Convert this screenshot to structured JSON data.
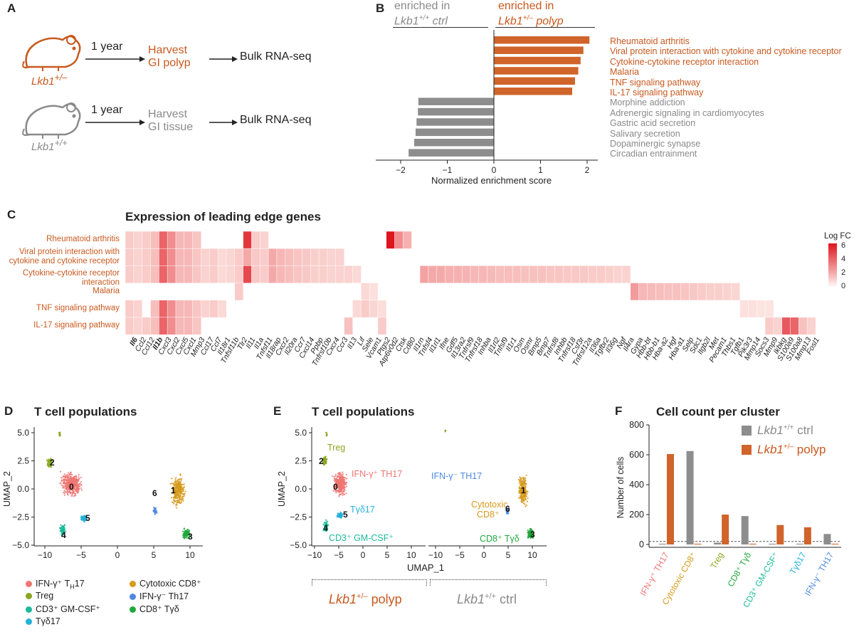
{
  "panelA": {
    "letter": "A",
    "rows": [
      {
        "genotype": "Lkb1+/–",
        "time": "1 year",
        "harvest1": "Harvest",
        "harvest2": "GI polyp",
        "assay": "Bulk RNA-seq",
        "color": "#c8591f"
      },
      {
        "genotype": "Lkb1+/+",
        "time": "1 year",
        "harvest1": "Harvest",
        "harvest2": "GI tissue",
        "assay": "Bulk RNA-seq",
        "color": "#8a8a8a"
      }
    ]
  },
  "panelB": {
    "letter": "B",
    "left_header_1": "enriched in",
    "left_header_2": "Lkb1+/+ ctrl",
    "right_header_1": "enriched in",
    "right_header_2": "Lkb1+/– polyp",
    "chart_data": {
      "type": "bar",
      "orientation": "horizontal",
      "xlabel": "Normalized enrichment score",
      "xlim": [
        -2.3,
        2.5
      ],
      "xticks": [
        "−2",
        "−1",
        "0",
        "1",
        "2"
      ],
      "categories": [
        "Rheumatoid arthritis",
        "Viral protein interaction with cytokine and cytokine receptor",
        "Cytokine-cytokine receptor interaction",
        "Malaria",
        "TNF signaling pathway",
        "IL-17 signaling pathway",
        "Morphine addiction",
        "Adrenergic signaling in cardiomyocytes",
        "Gastric acid secretion",
        "Salivary secretion",
        "Dopaminergic synapse",
        "Circadian entrainment"
      ],
      "values": [
        2.05,
        1.92,
        1.86,
        1.81,
        1.74,
        1.68,
        -1.62,
        -1.63,
        -1.66,
        -1.68,
        -1.71,
        -1.83
      ],
      "colors": {
        "positive": "#d0642a",
        "negative": "#8d8d8d"
      }
    }
  },
  "panelC": {
    "letter": "C",
    "title": "Expression of leading edge genes",
    "legend_title": "Log FC",
    "chart_data": {
      "type": "heatmap",
      "rows": [
        "Rheumatoid arthritis",
        "Viral protein interaction with cytokine and cytokine receptor",
        "Cytokine-cytokine receptor interaction",
        "Malaria",
        "TNF signaling pathway",
        "IL-17 signaling pathway"
      ],
      "columns": [
        "Il6",
        "Ccl2",
        "Ccl12",
        "Il1b",
        "Cxcl3",
        "Cxcl2",
        "Cxcl5",
        "Cxcl1",
        "Mmp3",
        "Ccl17",
        "Ccl7",
        "Il18r1",
        "Tnfsf11b",
        "Tlr2",
        "Il11",
        "Il1a",
        "Tnfsf11",
        "Il18rap",
        "Cxcr2",
        "Il20ra",
        "Ccr7",
        "Cxcl14",
        "Ppbp",
        "Tnfrsf10b",
        "Cxcr4",
        "Ccr3",
        "Il13",
        "Lif",
        "Sele",
        "Vcam1",
        "Ptgs2",
        "Atp6v0d2",
        "Ctsk",
        "Cd80",
        "Il1rn",
        "Tnfsf4",
        "Il1rl1",
        "Ifne",
        "Gdf5",
        "Il13ra2",
        "Tnfrsf9",
        "Tnfrsf18",
        "Inhba",
        "Il1rl2",
        "Tnfsf9",
        "Il1r1",
        "Osm",
        "Osmr",
        "Bmp5",
        "Bmp7",
        "Tnfrsf8",
        "Inhbb",
        "Tnfrsf18",
        "Csf3r",
        "Tnfrsf12a",
        "Il36a",
        "Tgfbr2",
        "Il36g",
        "Ngf",
        "Il4ra",
        "Gypa",
        "Hbb-bt",
        "Hbb-b1",
        "Hba-a2",
        "Hgf",
        "Hba-a1",
        "Selp",
        "Sdc1",
        "Itgb2l",
        "Met",
        "Pecam1",
        "Thbs1",
        "Tgfb1",
        "Pik3r3",
        "Mmp14",
        "Socs3",
        "Mmp9",
        "Ikbkg",
        "S100a9",
        "S100a8",
        "Mmp13",
        "Fosl1"
      ],
      "bold_columns": [
        "Il6",
        "Il1b"
      ],
      "legend_ticks": [
        "6",
        "4",
        "2",
        "0"
      ],
      "color_range": [
        0,
        6
      ],
      "values": [
        [
          1.2,
          1.0,
          1.2,
          1.6,
          4.2,
          3.0,
          1.8,
          1.8,
          1.4,
          0,
          0,
          0,
          0,
          0,
          5.5,
          1.2,
          1.0,
          0,
          0,
          0,
          0,
          0,
          0,
          0,
          0,
          0,
          0,
          0,
          0,
          0,
          0,
          6.5,
          3.0,
          2.0,
          0,
          0,
          0,
          0,
          0,
          0,
          0,
          0,
          0,
          0,
          0,
          0,
          0,
          0,
          0,
          0,
          0,
          0,
          0,
          0,
          0,
          0,
          0,
          0,
          0,
          0,
          0,
          0,
          0,
          0,
          0,
          0,
          0,
          0,
          0,
          0,
          0,
          0,
          0,
          0,
          0,
          0,
          0,
          0,
          0,
          0,
          0,
          0
        ],
        [
          1.2,
          1.0,
          1.2,
          1.6,
          4.2,
          3.0,
          1.8,
          1.8,
          1.4,
          1.0,
          1.2,
          0.8,
          0.9,
          1.2,
          2.2,
          1.3,
          1.2,
          2.2,
          1.8,
          1.6,
          1.4,
          1.3,
          1.1,
          1.1,
          1.0,
          1.0,
          0,
          0,
          0,
          0,
          0,
          0,
          0,
          0,
          0,
          0,
          0,
          0,
          0,
          0,
          0,
          0,
          0,
          0,
          0,
          0,
          0,
          0,
          0,
          0,
          0,
          0,
          0,
          0,
          0,
          0,
          0,
          0,
          0,
          0,
          0,
          0,
          0,
          0,
          0,
          0,
          0,
          0,
          0,
          0,
          0,
          0,
          0,
          0,
          0,
          0,
          0,
          0,
          0,
          0,
          0,
          0
        ],
        [
          1.2,
          1.0,
          1.2,
          1.6,
          4.2,
          3.0,
          1.8,
          1.8,
          1.4,
          1.0,
          1.2,
          0.8,
          0.9,
          1.2,
          5.0,
          1.3,
          1.2,
          2.2,
          1.8,
          1.6,
          1.4,
          1.3,
          1.1,
          1.1,
          1.0,
          1.0,
          1.0,
          0.8,
          0,
          0,
          0,
          0,
          0,
          0,
          0,
          2.4,
          2.2,
          2.2,
          2.0,
          2.0,
          1.9,
          1.8,
          1.8,
          1.7,
          1.6,
          1.6,
          1.6,
          1.5,
          1.5,
          1.5,
          1.4,
          1.4,
          1.3,
          1.3,
          1.3,
          1.2,
          1.2,
          1.1,
          1.0,
          1.0,
          0,
          0,
          0,
          0,
          0,
          0,
          0,
          0,
          0,
          0,
          0,
          0,
          0,
          0,
          0,
          0,
          0,
          0,
          0,
          0,
          0,
          0
        ],
        [
          0,
          0,
          0,
          0,
          0,
          0,
          0,
          0,
          0,
          0,
          0,
          0,
          0,
          1.2,
          0,
          0,
          0,
          0,
          0,
          0,
          0,
          0,
          0,
          0,
          0,
          0,
          0,
          0,
          0.8,
          0.6,
          0,
          0,
          0,
          0,
          0,
          0,
          0,
          0,
          0,
          0,
          0,
          0,
          0,
          0,
          0,
          0,
          0,
          0,
          0,
          0,
          0,
          0,
          0,
          0,
          0,
          0,
          0,
          0,
          0,
          0,
          2.6,
          1.8,
          1.7,
          1.6,
          1.5,
          1.5,
          1.4,
          1.3,
          1.2,
          1.1,
          1.1,
          1.0,
          0.9,
          0,
          0,
          0,
          0,
          0,
          0,
          0,
          0,
          0
        ],
        [
          1.2,
          1.0,
          0,
          1.6,
          4.2,
          3.0,
          1.8,
          1.8,
          1.4,
          1.0,
          1.2,
          0.8,
          0,
          0,
          0,
          0,
          0,
          0,
          0,
          0,
          0,
          0,
          0,
          0,
          0,
          0,
          0,
          0.8,
          1.2,
          0.9,
          0.7,
          0,
          0,
          0,
          0,
          0,
          0,
          0,
          0,
          0,
          0,
          0,
          0,
          0,
          0,
          0,
          0,
          0,
          0,
          0,
          0,
          0,
          0,
          0,
          0,
          0,
          0,
          0,
          0,
          0,
          0,
          0,
          0,
          0,
          0,
          0,
          0,
          0,
          0,
          0,
          0,
          0,
          0,
          0.6,
          0.6,
          0.5,
          0.5,
          0,
          0,
          0,
          0,
          0
        ],
        [
          1.2,
          1.0,
          1.2,
          1.6,
          4.2,
          3.0,
          1.8,
          1.8,
          1.4,
          0,
          0,
          0,
          0,
          0,
          0,
          0,
          0,
          0,
          0,
          0,
          0,
          0,
          0,
          0,
          0,
          0,
          1.5,
          0,
          0,
          0,
          1.2,
          0,
          0,
          0,
          0,
          0,
          0,
          0,
          0,
          0,
          0,
          0,
          0,
          0,
          0,
          0,
          0,
          0,
          0,
          0,
          0,
          0,
          0,
          0,
          0,
          0,
          0,
          0,
          0,
          0,
          0,
          0,
          0,
          0,
          0,
          0,
          0,
          0,
          0,
          0,
          0,
          0,
          0,
          0,
          0,
          0,
          1.2,
          1.0,
          4.5,
          4.2,
          1.5,
          1.0
        ]
      ]
    }
  },
  "panelD": {
    "letter": "D",
    "title": "T cell populations",
    "xlabel": "UMAP_1",
    "ylabel": "UMAP_2",
    "xticks": [
      "−10",
      "−5",
      "0",
      "5",
      "10"
    ],
    "yticks": [
      "5.0",
      "2.5",
      "0.0",
      "−2.5",
      "−5.0"
    ],
    "cluster_ids": [
      "0",
      "1",
      "2",
      "3",
      "4",
      "5",
      "6"
    ],
    "legend": [
      {
        "label": "IFN-γ⁺ T",
        "sub": "H",
        "suffix": "17",
        "color": "#ef7672"
      },
      {
        "label": "Cytotoxic CD8⁺",
        "sub": "",
        "suffix": "",
        "color": "#d69a1c"
      },
      {
        "label": "Treg",
        "sub": "",
        "suffix": "",
        "color": "#88a81e"
      },
      {
        "label": "IFN-γ⁻ Th17",
        "sub": "",
        "suffix": "",
        "color": "#4f8ae0"
      },
      {
        "label": "CD3⁺ GM-CSF⁺",
        "sub": "",
        "suffix": "",
        "color": "#1bbb9a"
      },
      {
        "label": "CD8⁺ Tγδ",
        "sub": "",
        "suffix": "",
        "color": "#21a83c"
      },
      {
        "label": "Tγδ17",
        "sub": "",
        "suffix": "",
        "color": "#23b2db"
      }
    ]
  },
  "panelE": {
    "letter": "E",
    "title": "T cell populations",
    "xlabel": "UMAP_1",
    "ylabel": "UMAP_2",
    "left_group": "Lkb1+/– polyp",
    "right_group": "Lkb1+/+ ctrl",
    "labels": {
      "treg": "Treg",
      "ifn_pos": "IFN-γ⁺ TH17",
      "tgd17": "Tγδ17",
      "cd3": "CD3⁺ GM-CSF⁺",
      "ifn_neg": "IFN-γ⁻ TH17",
      "cyto1": "Cytotoxic",
      "cyto2": "CD8⁺",
      "cd8tgd": "CD8⁺ Tγδ"
    }
  },
  "panelF": {
    "letter": "F",
    "title": "Cell count per cluster",
    "chart_data": {
      "type": "bar",
      "ylabel": "Number of cells",
      "ylim": [
        0,
        800
      ],
      "yticks": [
        "0",
        "200",
        "400",
        "600",
        "800"
      ],
      "categories": [
        "IFN-γ⁺ TH17",
        "Cytotoxic CD8⁺",
        "Treg",
        "CD8⁺ Tγδ",
        "CD3⁺ GM-CSF⁺",
        "Tγδ17",
        "IFN-γ⁻ TH17"
      ],
      "category_colors": [
        "#ef7672",
        "#d69a1c",
        "#88a81e",
        "#21a83c",
        "#1bbb9a",
        "#23b2db",
        "#4f8ae0"
      ],
      "series": [
        {
          "name": "Lkb1+/+ ctrl",
          "color": "#8d8d8d",
          "values": [
            5,
            625,
            12,
            190,
            5,
            5,
            70
          ]
        },
        {
          "name": "Lkb1+/– polyp",
          "color": "#d0642a",
          "values": [
            605,
            5,
            200,
            5,
            130,
            115,
            5
          ]
        }
      ]
    }
  }
}
